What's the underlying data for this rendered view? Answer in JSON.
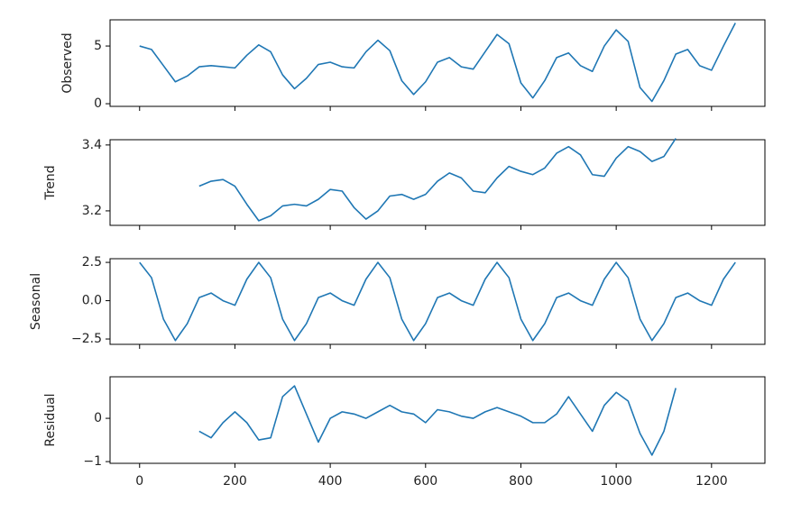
{
  "chart_data": [
    {
      "type": "line",
      "ylabel": "Observed",
      "color": "#1f77b4",
      "x": [
        0,
        25,
        50,
        75,
        100,
        125,
        150,
        175,
        200,
        225,
        250,
        275,
        300,
        325,
        350,
        375,
        400,
        425,
        450,
        475,
        500,
        525,
        550,
        575,
        600,
        625,
        650,
        675,
        700,
        725,
        750,
        775,
        800,
        825,
        850,
        875,
        900,
        925,
        950,
        975,
        1000,
        1025,
        1050,
        1075,
        1100,
        1125,
        1150,
        1175,
        1200,
        1225,
        1250
      ],
      "values": [
        5.0,
        4.7,
        3.3,
        1.9,
        2.4,
        3.2,
        3.3,
        3.2,
        3.1,
        4.2,
        5.1,
        4.5,
        2.5,
        1.3,
        2.2,
        3.4,
        3.6,
        3.2,
        3.1,
        4.5,
        5.5,
        4.6,
        2.0,
        0.8,
        1.9,
        3.6,
        4.0,
        3.2,
        3.0,
        4.5,
        6.0,
        5.2,
        1.8,
        0.5,
        2.0,
        4.0,
        4.4,
        3.3,
        2.8,
        5.0,
        6.4,
        5.4,
        1.4,
        0.2,
        2.0,
        4.3,
        4.7,
        3.3,
        2.9,
        5.0,
        7.0
      ],
      "xlim": [
        -62,
        1312
      ],
      "xticks": [
        0,
        200,
        400,
        600,
        800,
        1000,
        1200
      ],
      "ylim": [
        -0.23,
        7.27
      ],
      "yticks": [
        0,
        5
      ]
    },
    {
      "type": "line",
      "ylabel": "Trend",
      "color": "#1f77b4",
      "x": [
        125,
        150,
        175,
        200,
        225,
        250,
        275,
        300,
        325,
        350,
        375,
        400,
        425,
        450,
        475,
        500,
        525,
        550,
        575,
        600,
        625,
        650,
        675,
        700,
        725,
        750,
        775,
        800,
        825,
        850,
        875,
        900,
        925,
        950,
        975,
        1000,
        1025,
        1050,
        1075,
        1100,
        1125
      ],
      "values": [
        3.275,
        3.29,
        3.295,
        3.275,
        3.22,
        3.17,
        3.185,
        3.215,
        3.22,
        3.215,
        3.235,
        3.265,
        3.26,
        3.21,
        3.175,
        3.2,
        3.245,
        3.25,
        3.235,
        3.25,
        3.29,
        3.315,
        3.3,
        3.26,
        3.255,
        3.3,
        3.335,
        3.32,
        3.31,
        3.33,
        3.375,
        3.395,
        3.37,
        3.31,
        3.305,
        3.36,
        3.395,
        3.38,
        3.35,
        3.365,
        3.42
      ],
      "xlim": [
        -62,
        1312
      ],
      "xticks": [
        0,
        200,
        400,
        600,
        800,
        1000,
        1200
      ],
      "ylim": [
        3.156,
        3.416
      ],
      "yticks": [
        3.2,
        3.4
      ]
    },
    {
      "type": "line",
      "ylabel": "Seasonal",
      "color": "#1f77b4",
      "x": [
        0,
        25,
        50,
        75,
        100,
        125,
        150,
        175,
        200,
        225,
        250,
        275,
        300,
        325,
        350,
        375,
        400,
        425,
        450,
        475,
        500,
        525,
        550,
        575,
        600,
        625,
        650,
        675,
        700,
        725,
        750,
        775,
        800,
        825,
        850,
        875,
        900,
        925,
        950,
        975,
        1000,
        1025,
        1050,
        1075,
        1100,
        1125,
        1150,
        1175,
        1200,
        1225,
        1250
      ],
      "values": [
        2.5,
        1.5,
        -1.2,
        -2.6,
        -1.5,
        0.2,
        0.5,
        0.0,
        -0.3,
        1.4,
        2.5,
        1.5,
        -1.2,
        -2.6,
        -1.5,
        0.2,
        0.5,
        0.0,
        -0.3,
        1.4,
        2.5,
        1.5,
        -1.2,
        -2.6,
        -1.5,
        0.2,
        0.5,
        0.0,
        -0.3,
        1.4,
        2.5,
        1.5,
        -1.2,
        -2.6,
        -1.5,
        0.2,
        0.5,
        0.0,
        -0.3,
        1.4,
        2.5,
        1.5,
        -1.2,
        -2.6,
        -1.5,
        0.2,
        0.5,
        0.0,
        -0.3,
        1.4,
        2.5
      ],
      "xlim": [
        -62,
        1312
      ],
      "xticks": [
        0,
        200,
        400,
        600,
        800,
        1000,
        1200
      ],
      "ylim": [
        -2.85,
        2.74
      ],
      "yticks": [
        {
          "value": -2.5,
          "label": "−2.5"
        },
        {
          "value": 0,
          "label": "0.0"
        },
        2.5
      ]
    },
    {
      "type": "line",
      "ylabel": "Residual",
      "color": "#1f77b4",
      "x": [
        125,
        150,
        175,
        200,
        225,
        250,
        275,
        300,
        325,
        350,
        375,
        400,
        425,
        450,
        475,
        500,
        525,
        550,
        575,
        600,
        625,
        650,
        675,
        700,
        725,
        750,
        775,
        800,
        825,
        850,
        875,
        900,
        925,
        950,
        975,
        1000,
        1025,
        1050,
        1075,
        1100,
        1125
      ],
      "values": [
        -0.3,
        -0.45,
        -0.1,
        0.15,
        -0.1,
        -0.5,
        -0.45,
        0.5,
        0.75,
        0.1,
        -0.55,
        0.0,
        0.15,
        0.1,
        0.0,
        0.15,
        0.3,
        0.15,
        0.1,
        -0.1,
        0.2,
        0.15,
        0.05,
        0.0,
        0.15,
        0.25,
        0.15,
        0.05,
        -0.1,
        -0.1,
        0.1,
        0.5,
        0.1,
        -0.3,
        0.3,
        0.6,
        0.4,
        -0.35,
        -0.85,
        -0.3,
        0.7
      ],
      "xlim": [
        -62,
        1312
      ],
      "xticks": [
        0,
        200,
        400,
        600,
        800,
        1000,
        1200
      ],
      "ylim": [
        -1.04,
        0.96
      ],
      "yticks": [
        {
          "value": -1,
          "label": "−1"
        },
        0
      ]
    }
  ]
}
